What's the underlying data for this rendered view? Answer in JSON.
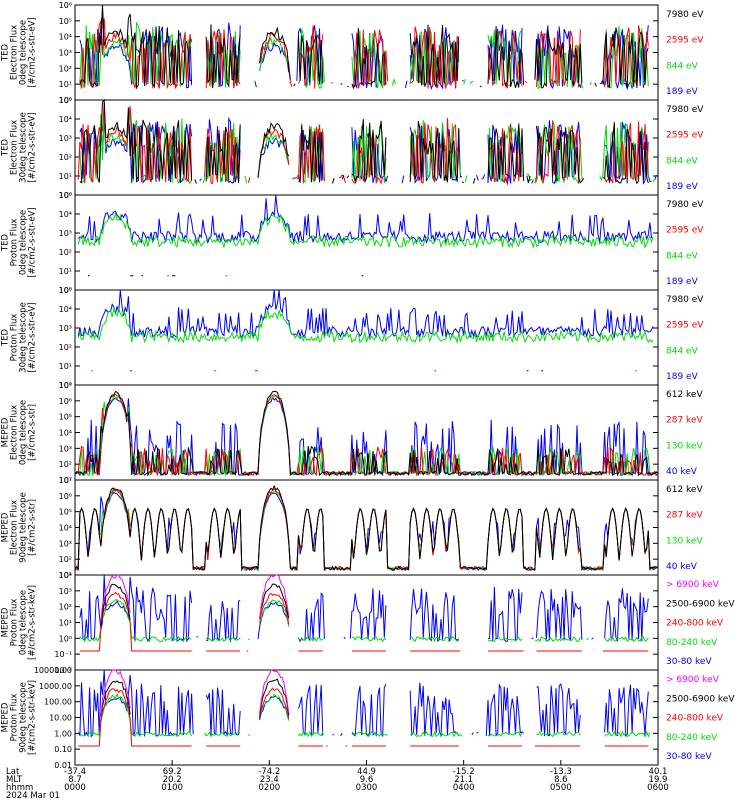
{
  "chart_data": {
    "type": "line",
    "title": "",
    "date_label": "2024 Mar 01",
    "x_axis": {
      "row_labels": [
        "Lat",
        "MLT",
        "hhmm"
      ],
      "ticks": [
        {
          "lat": "-37.4",
          "mlt": "8.7",
          "hhmm": "0000"
        },
        {
          "lat": "69.2",
          "mlt": "20.2",
          "hhmm": "0100"
        },
        {
          "lat": "-74.2",
          "mlt": "23.4",
          "hhmm": "0200"
        },
        {
          "lat": "44.9",
          "mlt": "9.6",
          "hhmm": "0300"
        },
        {
          "lat": "-15.2",
          "mlt": "21.1",
          "hhmm": "0400"
        },
        {
          "lat": "-13.3",
          "mlt": "8.6",
          "hhmm": "0500"
        },
        {
          "lat": "40.1",
          "mlt": "19.9",
          "hhmm": "0600"
        }
      ],
      "range_hours": [
        0,
        6
      ]
    },
    "panels": [
      {
        "ylabel": [
          "TED",
          "Electron Flux",
          "0deg telescope",
          "[#/cm2-s-str-eV]"
        ],
        "scale": "log",
        "ylim_exp": [
          0,
          6
        ],
        "ytick_labels": [
          "10⁰",
          "10¹",
          "10²",
          "10³",
          "10⁴",
          "10⁵",
          "10⁶"
        ],
        "series": [
          {
            "name": "7980 eV",
            "color": "#000000"
          },
          {
            "name": "2595 eV",
            "color": "#ff0000"
          },
          {
            "name": "844 eV",
            "color": "#00dd00"
          },
          {
            "name": "189 eV",
            "color": "#0000ff"
          }
        ]
      },
      {
        "ylabel": [
          "TED",
          "Electron Flux",
          "30deg telescope",
          "[#/cm2-s-str-eV]"
        ],
        "scale": "log",
        "ylim_exp": [
          0,
          5
        ],
        "ytick_labels": [
          "10⁰",
          "10¹",
          "10²",
          "10³",
          "10⁴",
          "10⁵"
        ],
        "series": [
          {
            "name": "7980 eV",
            "color": "#000000"
          },
          {
            "name": "2595 eV",
            "color": "#ff0000"
          },
          {
            "name": "844 eV",
            "color": "#00dd00"
          },
          {
            "name": "189 eV",
            "color": "#0000ff"
          }
        ]
      },
      {
        "ylabel": [
          "TED",
          "Proton Flux",
          "0deg telescope",
          "[#/cm2-s-str-eV]"
        ],
        "scale": "log",
        "ylim_exp": [
          0,
          5
        ],
        "ytick_labels": [
          "10⁰",
          "10¹",
          "10²",
          "10³",
          "10⁴",
          "10⁵"
        ],
        "series": [
          {
            "name": "7980 eV",
            "color": "#000000"
          },
          {
            "name": "2595 eV",
            "color": "#ff0000"
          },
          {
            "name": "844 eV",
            "color": "#00dd00"
          },
          {
            "name": "189 eV",
            "color": "#0000ff"
          }
        ]
      },
      {
        "ylabel": [
          "TED",
          "Proton Flux",
          "30deg telescope",
          "[#/cm2-s-str-eV]"
        ],
        "scale": "log",
        "ylim_exp": [
          0,
          5
        ],
        "ytick_labels": [
          "10⁰",
          "10¹",
          "10²",
          "10³",
          "10⁴",
          "10⁵"
        ],
        "series": [
          {
            "name": "7980 eV",
            "color": "#000000"
          },
          {
            "name": "2595 eV",
            "color": "#ff0000"
          },
          {
            "name": "844 eV",
            "color": "#00dd00"
          },
          {
            "name": "189 eV",
            "color": "#0000ff"
          }
        ]
      },
      {
        "ylabel": [
          "MEPED",
          "Electron Flux",
          "0deg telescope",
          "[#/cm2-s-str]"
        ],
        "scale": "log",
        "ylim_exp": [
          1,
          7
        ],
        "ytick_labels": [
          "10¹",
          "10²",
          "10³",
          "10⁴",
          "10⁵",
          "10⁶",
          "10⁷"
        ],
        "series": [
          {
            "name": "612 keV",
            "color": "#000000"
          },
          {
            "name": "287 keV",
            "color": "#ff0000"
          },
          {
            "name": "130 keV",
            "color": "#00dd00"
          },
          {
            "name": "40 keV",
            "color": "#0000ff"
          }
        ]
      },
      {
        "ylabel": [
          "MEPED",
          "Electron Flux",
          "90deg telescope",
          "[#/cm2-s-str]"
        ],
        "scale": "log",
        "ylim_exp": [
          1,
          7
        ],
        "ytick_labels": [
          "10¹",
          "10²",
          "10³",
          "10⁴",
          "10⁵",
          "10⁶",
          "10⁷"
        ],
        "series": [
          {
            "name": "612 keV",
            "color": "#000000"
          },
          {
            "name": "287 keV",
            "color": "#ff0000"
          },
          {
            "name": "130 keV",
            "color": "#00dd00"
          },
          {
            "name": "40 keV",
            "color": "#0000ff"
          }
        ]
      },
      {
        "ylabel": [
          "MEPED",
          "Proton Flux",
          "0deg telescope",
          "[#/cm2-s-str-keV]"
        ],
        "scale": "log",
        "ylim_exp": [
          -2,
          4
        ],
        "ytick_labels": [
          "10⁻²",
          "10⁻¹",
          "10⁰",
          "10¹",
          "10²",
          "10³",
          "10⁴"
        ],
        "series": [
          {
            "name": "> 6900 keV",
            "color": "#ff00ff"
          },
          {
            "name": "2500-6900 keV",
            "color": "#000000"
          },
          {
            "name": "240-800 keV",
            "color": "#ff0000"
          },
          {
            "name": "80-240 keV",
            "color": "#00dd00"
          },
          {
            "name": "30-80 keV",
            "color": "#0000ff"
          }
        ]
      },
      {
        "ylabel": [
          "MEPED",
          "Proton Flux",
          "90deg telescope",
          "[#/cm2-s-str-keV]"
        ],
        "scale": "log",
        "ylim_exp": [
          -2,
          4
        ],
        "ytick_labels": [
          "0.01",
          "0.10",
          "1.00",
          "10.00",
          "100.00",
          "1000.00",
          "10000.00"
        ],
        "series": [
          {
            "name": "> 6900 keV",
            "color": "#ff00ff"
          },
          {
            "name": "2500-6900 keV",
            "color": "#000000"
          },
          {
            "name": "240-800 keV",
            "color": "#ff0000"
          },
          {
            "name": "80-240 keV",
            "color": "#00dd00"
          },
          {
            "name": "30-80 keV",
            "color": "#0000ff"
          }
        ]
      }
    ]
  }
}
